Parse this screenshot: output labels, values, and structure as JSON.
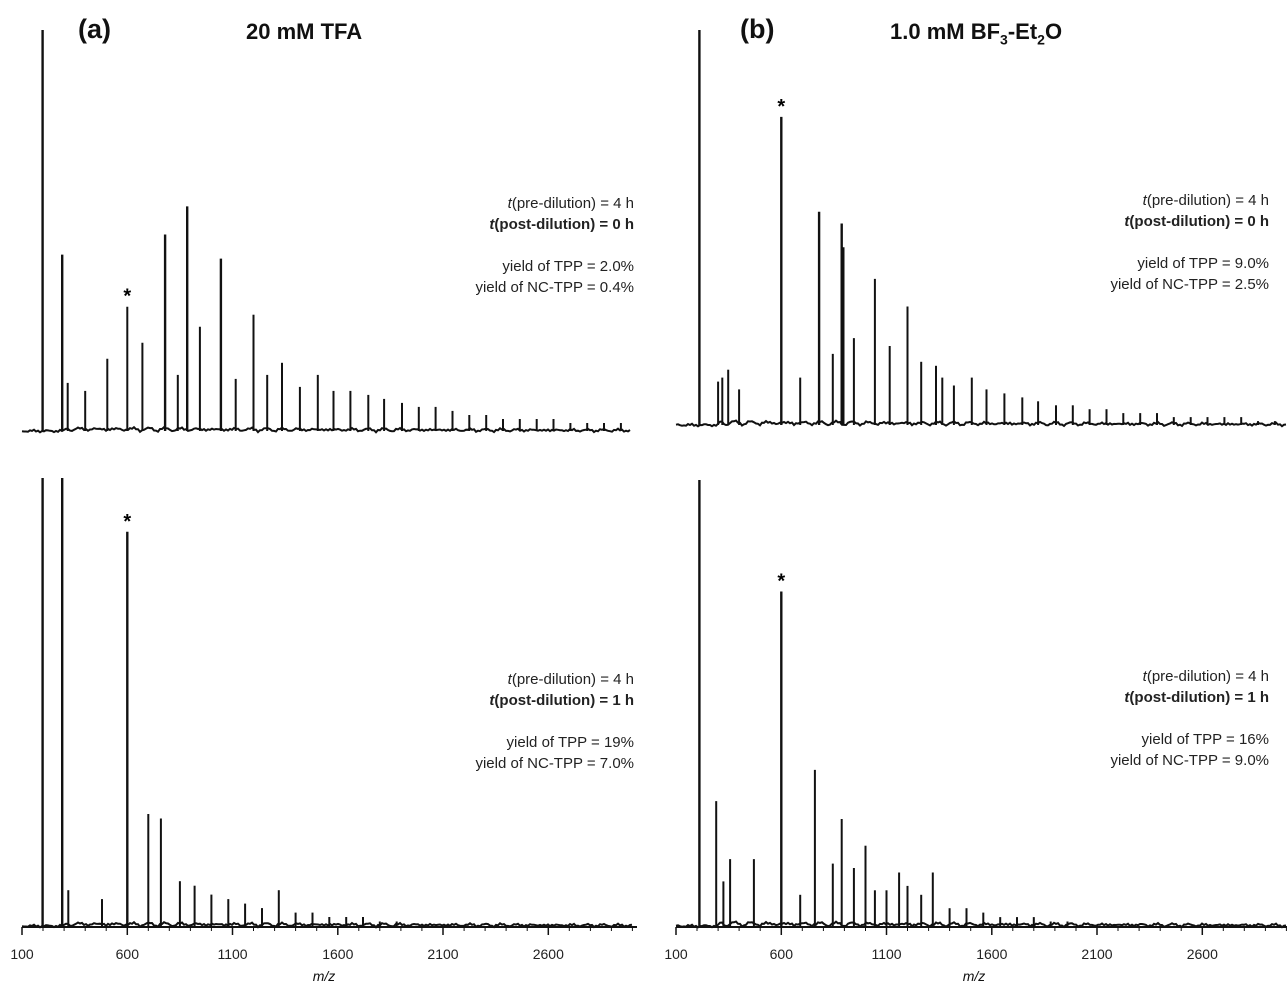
{
  "figure": {
    "panels": [
      {
        "label": "(a)",
        "title": "20 mM TFA",
        "title_sub": "",
        "title_tail": "",
        "title_sub2": "",
        "title_end": ""
      },
      {
        "label": "(b)",
        "title": "1.0 mM BF",
        "title_sub": "3",
        "title_tail": "-Et",
        "title_sub2": "2",
        "title_end": "O"
      }
    ],
    "xlabel": "m/z",
    "xticks": [
      "100",
      "600",
      "1100",
      "1600",
      "2100",
      "2600"
    ]
  },
  "annotations": [
    {
      "pre": "t",
      "pre_rest": "(pre-dilution) = 4 h",
      "post": "t",
      "post_rest": "(post-dilution) = 0 h",
      "yield_tpp": "yield of TPP = 2.0%",
      "yield_nc": "yield of NC-TPP = 0.4%"
    },
    {
      "pre": "t",
      "pre_rest": "(pre-dilution) = 4 h",
      "post": "t",
      "post_rest": "(post-dilution) = 0 h",
      "yield_tpp": "yield of TPP = 9.0%",
      "yield_nc": "yield of NC-TPP = 2.5%"
    },
    {
      "pre": "t",
      "pre_rest": "(pre-dilution) = 4 h",
      "post": "t",
      "post_rest": "(post-dilution) = 1 h",
      "yield_tpp": "yield of TPP = 19%",
      "yield_nc": "yield of NC-TPP = 7.0%"
    },
    {
      "pre": "t",
      "pre_rest": "(pre-dilution) = 4 h",
      "post": "t",
      "post_rest": "(post-dilution) = 1 h",
      "yield_tpp": "yield of TPP = 16%",
      "yield_nc": "yield of NC-TPP = 9.0%"
    }
  ],
  "chart_data": [
    {
      "type": "line",
      "panel": "(a)",
      "title": "20 mM TFA",
      "condition": "t(post-dilution) = 0 h",
      "xlabel": "",
      "xlim": [
        100,
        3000
      ],
      "ylim": [
        0,
        100
      ],
      "marker": "*",
      "marker_at": 600,
      "peaks": [
        [
          198,
          100
        ],
        [
          291,
          44
        ],
        [
          317,
          12
        ],
        [
          400,
          10
        ],
        [
          505,
          18
        ],
        [
          600,
          31
        ],
        [
          672,
          22
        ],
        [
          780,
          49
        ],
        [
          840,
          14
        ],
        [
          885,
          56
        ],
        [
          945,
          26
        ],
        [
          1045,
          43
        ],
        [
          1115,
          13
        ],
        [
          1200,
          29
        ],
        [
          1265,
          14
        ],
        [
          1335,
          17
        ],
        [
          1420,
          11
        ],
        [
          1505,
          14
        ],
        [
          1580,
          10
        ],
        [
          1660,
          10
        ],
        [
          1745,
          9
        ],
        [
          1820,
          8
        ],
        [
          1905,
          7
        ],
        [
          1985,
          6
        ],
        [
          2065,
          6
        ],
        [
          2145,
          5
        ],
        [
          2225,
          4
        ],
        [
          2305,
          4
        ],
        [
          2385,
          3
        ],
        [
          2465,
          3
        ],
        [
          2545,
          3
        ],
        [
          2625,
          3
        ],
        [
          2705,
          2
        ],
        [
          2785,
          2
        ],
        [
          2865,
          2
        ],
        [
          2945,
          2
        ]
      ]
    },
    {
      "type": "line",
      "panel": "(b)",
      "title": "1.0 mM BF3-Et2O",
      "condition": "t(post-dilution) = 0 h",
      "xlabel": "",
      "xlim": [
        100,
        3000
      ],
      "ylim": [
        0,
        100
      ],
      "marker": "*",
      "marker_at": 600,
      "peaks": [
        [
          211,
          100
        ],
        [
          300,
          11
        ],
        [
          320,
          12
        ],
        [
          348,
          14
        ],
        [
          400,
          9
        ],
        [
          600,
          78
        ],
        [
          690,
          12
        ],
        [
          780,
          54
        ],
        [
          845,
          18
        ],
        [
          887,
          51
        ],
        [
          895,
          45
        ],
        [
          945,
          22
        ],
        [
          1045,
          37
        ],
        [
          1115,
          20
        ],
        [
          1200,
          30
        ],
        [
          1265,
          16
        ],
        [
          1335,
          15
        ],
        [
          1365,
          12
        ],
        [
          1420,
          10
        ],
        [
          1505,
          12
        ],
        [
          1575,
          9
        ],
        [
          1660,
          8
        ],
        [
          1745,
          7
        ],
        [
          1820,
          6
        ],
        [
          1905,
          5
        ],
        [
          1985,
          5
        ],
        [
          2065,
          4
        ],
        [
          2145,
          4
        ],
        [
          2225,
          3
        ],
        [
          2305,
          3
        ],
        [
          2385,
          3
        ],
        [
          2465,
          2
        ],
        [
          2545,
          2
        ],
        [
          2625,
          2
        ],
        [
          2705,
          2
        ],
        [
          2785,
          2
        ],
        [
          2865,
          1
        ],
        [
          2945,
          1
        ]
      ]
    },
    {
      "type": "line",
      "panel": "(a)",
      "title": "20 mM TFA",
      "condition": "t(post-dilution) = 1 h",
      "xlabel": "m/z",
      "xlim": [
        100,
        3000
      ],
      "ylim": [
        0,
        100
      ],
      "marker": "*",
      "marker_at": 600,
      "peaks": [
        [
          198,
          100
        ],
        [
          291,
          100
        ],
        [
          320,
          8
        ],
        [
          480,
          6
        ],
        [
          600,
          88
        ],
        [
          700,
          25
        ],
        [
          760,
          24
        ],
        [
          850,
          10
        ],
        [
          920,
          9
        ],
        [
          1000,
          7
        ],
        [
          1080,
          6
        ],
        [
          1160,
          5
        ],
        [
          1240,
          4
        ],
        [
          1320,
          8
        ],
        [
          1400,
          3
        ],
        [
          1480,
          3
        ],
        [
          1560,
          2
        ],
        [
          1640,
          2
        ],
        [
          1720,
          2
        ],
        [
          1800,
          1
        ],
        [
          1880,
          1
        ]
      ]
    },
    {
      "type": "line",
      "panel": "(b)",
      "title": "1.0 mM BF3-Et2O",
      "condition": "t(post-dilution) = 1 h",
      "xlabel": "m/z",
      "xlim": [
        100,
        3000
      ],
      "ylim": [
        0,
        100
      ],
      "marker": "*",
      "marker_at": 600,
      "peaks": [
        [
          211,
          100
        ],
        [
          291,
          28
        ],
        [
          325,
          10
        ],
        [
          357,
          15
        ],
        [
          470,
          15
        ],
        [
          600,
          75
        ],
        [
          690,
          7
        ],
        [
          760,
          35
        ],
        [
          845,
          14
        ],
        [
          887,
          24
        ],
        [
          945,
          13
        ],
        [
          1000,
          18
        ],
        [
          1045,
          8
        ],
        [
          1100,
          8
        ],
        [
          1160,
          12
        ],
        [
          1200,
          9
        ],
        [
          1265,
          7
        ],
        [
          1320,
          12
        ],
        [
          1400,
          4
        ],
        [
          1480,
          4
        ],
        [
          1560,
          3
        ],
        [
          1640,
          2
        ],
        [
          1720,
          2
        ],
        [
          1800,
          2
        ],
        [
          1880,
          1
        ],
        [
          1960,
          1
        ]
      ]
    }
  ]
}
